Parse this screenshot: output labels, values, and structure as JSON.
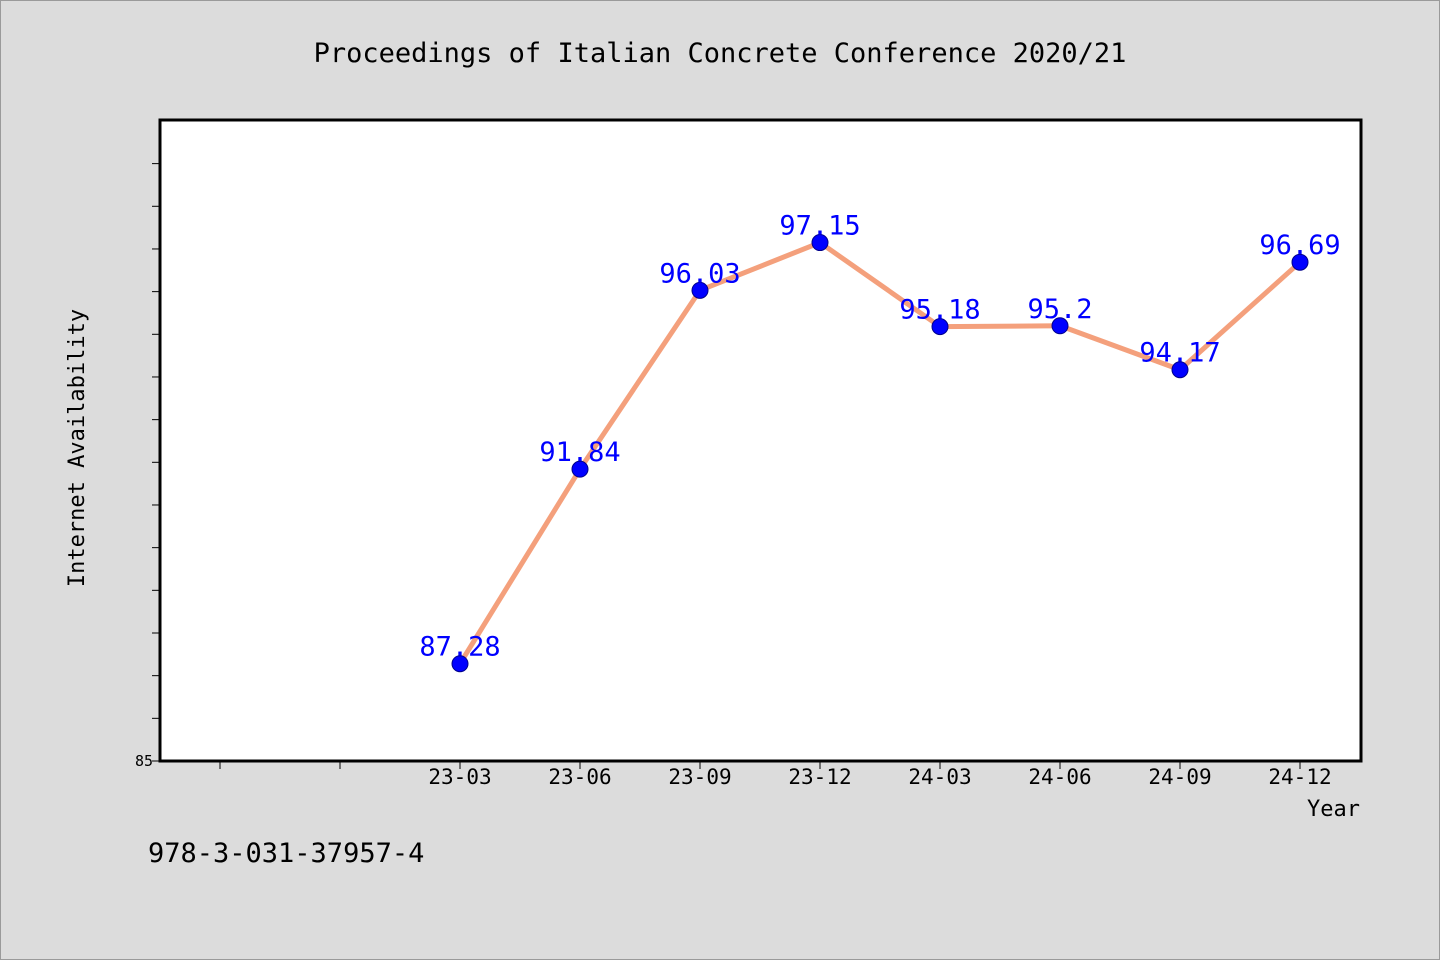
{
  "chart_data": {
    "type": "line",
    "title": "Proceedings of Italian Concrete Conference 2020/21",
    "xlabel": "Year",
    "ylabel": "Internet Availability",
    "categories": [
      "23-03",
      "23-06",
      "23-09",
      "23-12",
      "24-03",
      "24-06",
      "24-09",
      "24-12"
    ],
    "x_slots_before_data": 2,
    "series": [
      {
        "values": [
          87.28,
          91.84,
          96.03,
          97.15,
          95.18,
          95.2,
          94.17,
          96.69
        ]
      }
    ],
    "data_labels": [
      "87.28",
      "91.84",
      "96.03",
      "97.15",
      "95.18",
      "95.2",
      "94.17",
      "96.69"
    ],
    "ylim": [
      85,
      100
    ],
    "y_tick_labels": [
      "85"
    ],
    "grid": false,
    "legend": "none",
    "colors": {
      "line": "#f4a07c",
      "marker": "#0000ff",
      "data_label": "#0000ff",
      "background": "#dcdcdc",
      "plot_background": "#ffffff"
    }
  },
  "footer": {
    "isbn": "978-3-031-37957-4"
  }
}
